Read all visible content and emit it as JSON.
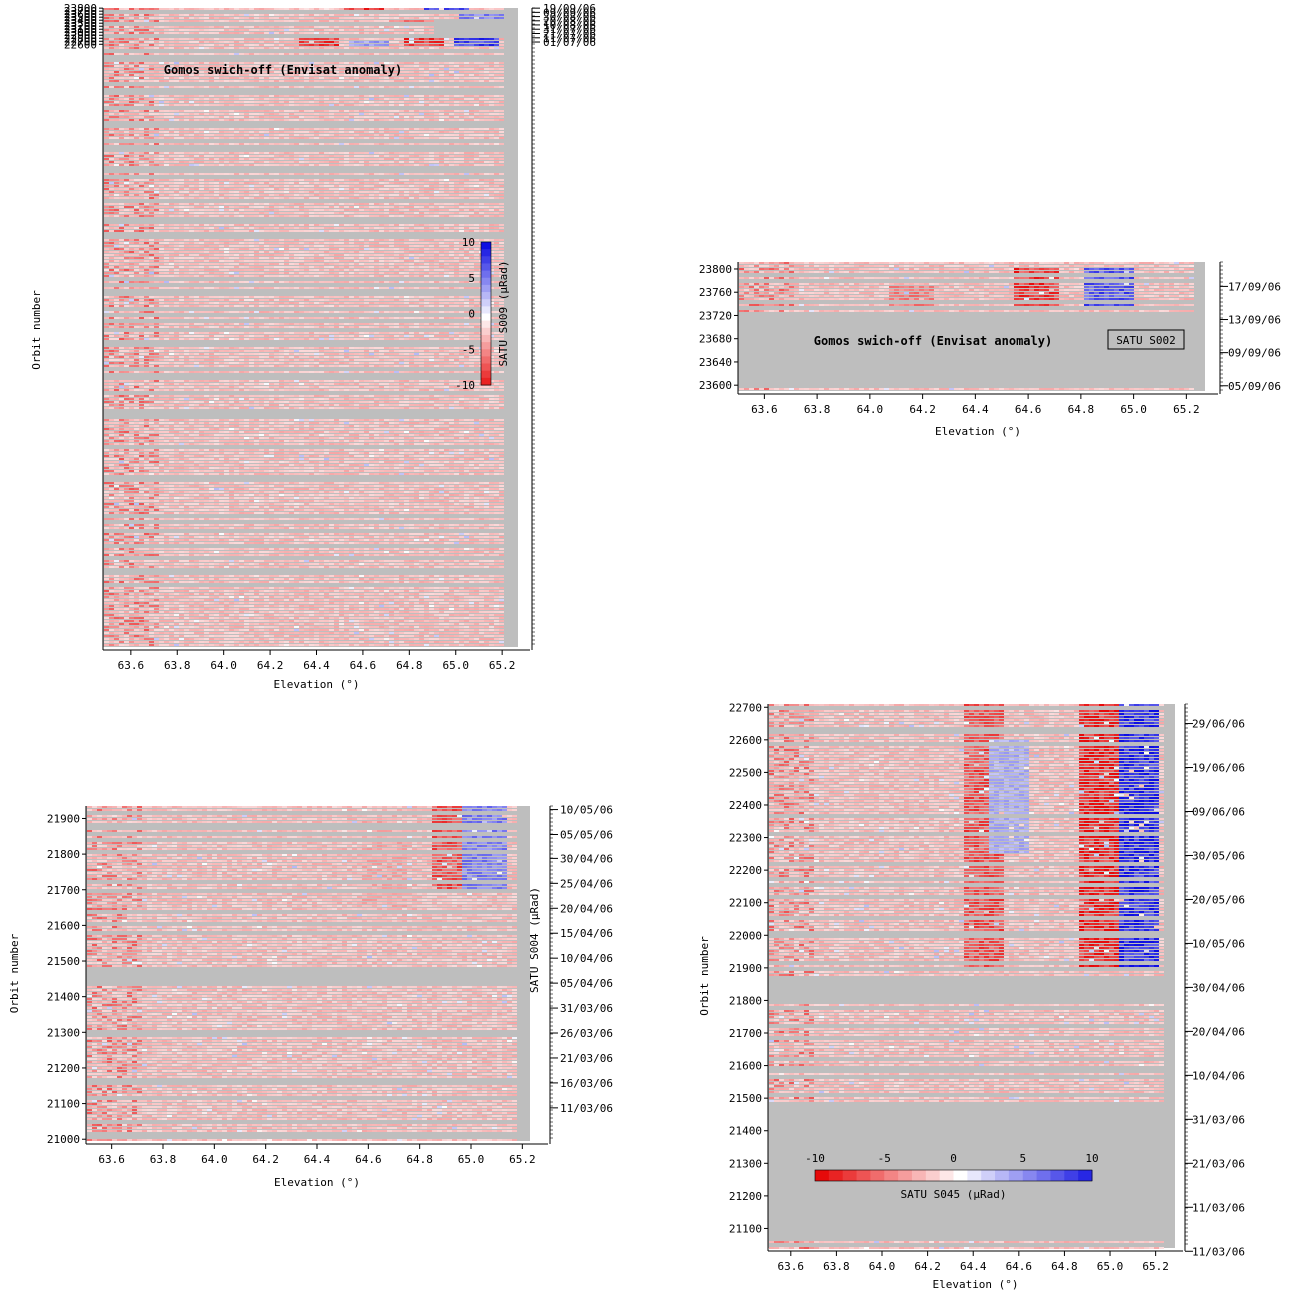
{
  "chart_data": [
    {
      "id": "S009",
      "type": "heatmap",
      "xlabel": "Elevation (°)",
      "ylabel": "",
      "xlim": [
        63.48,
        65.32
      ],
      "ylim": [
        2583,
        23805
      ],
      "x_ticks": [
        "63.6",
        "63.8",
        "64.0",
        "64.2",
        "64.4",
        "64.6",
        "64.8",
        "65.0",
        "65.2"
      ],
      "y_ticks": [
        "22600",
        "22700",
        "22800",
        "22900",
        "23000",
        "23100",
        "23200",
        "23300",
        "23400",
        "23500",
        "23600",
        "23700",
        "23800"
      ],
      "date_axis": [
        {
          "orbit": 23800,
          "label": "19/09/06"
        },
        {
          "orbit": 23660,
          "label": "09/09/06"
        },
        {
          "orbit": 23520,
          "label": "30/08/06"
        },
        {
          "orbit": 23380,
          "label": "20/08/06"
        },
        {
          "orbit": 23243,
          "label": "10/08/06"
        },
        {
          "orbit": 23100,
          "label": "31/07/06"
        },
        {
          "orbit": 22958,
          "label": "21/07/06"
        },
        {
          "orbit": 22815,
          "label": "11/07/06"
        },
        {
          "orbit": 22675,
          "label": "01/07/06"
        }
      ],
      "annotation": "Gomos swich-off (Envisat anomaly)",
      "colorbar": {
        "label": "SATU S009 (µRad)",
        "ticks": [
          "10",
          "5",
          "0",
          "-5",
          "-10"
        ],
        "range": [
          -10,
          10
        ],
        "orientation": "vertical"
      },
      "gaps": [
        [
          23646,
          23750
        ],
        [
          23540,
          23590
        ],
        [
          23040,
          23090
        ],
        [
          23190,
          23202
        ]
      ],
      "right_limit": [
        [
          22583,
          22975,
          65.2
        ],
        [
          22975,
          23410,
          64.9
        ],
        [
          23410,
          23646,
          65.2
        ],
        [
          23750,
          23805,
          65.2
        ]
      ],
      "features": [
        {
          "x": 64.4,
          "orbit_from": 22600,
          "orbit_to": 22820,
          "value": -9
        },
        {
          "x": 64.85,
          "orbit_from": 22600,
          "orbit_to": 22820,
          "value": -9
        },
        {
          "x": 65.08,
          "orbit_from": 22600,
          "orbit_to": 22820,
          "value": 9
        },
        {
          "x": 64.62,
          "orbit_from": 22600,
          "orbit_to": 22780,
          "value": 5
        },
        {
          "x": 64.8,
          "orbit_from": 23250,
          "orbit_to": 23420,
          "value": -6
        },
        {
          "x": 65.1,
          "orbit_from": 23470,
          "orbit_to": 23640,
          "value": 6
        },
        {
          "x": 64.6,
          "orbit_from": 23760,
          "orbit_to": 23805,
          "value": -9
        },
        {
          "x": 64.95,
          "orbit_from": 23760,
          "orbit_to": 23805,
          "value": 8
        }
      ],
      "colors": {
        "negative": "#e8000a",
        "positive": "#0010e0",
        "gap": "#bebebe"
      }
    },
    {
      "id": "S002",
      "type": "heatmap",
      "xlabel": "Elevation (°)",
      "ylabel": "",
      "xlim": [
        63.5,
        65.32
      ],
      "ylim": [
        23590,
        23812
      ],
      "x_ticks": [
        "63.6",
        "63.8",
        "64.0",
        "64.2",
        "64.4",
        "64.6",
        "64.8",
        "65.0",
        "65.2"
      ],
      "y_ticks": [
        "23600",
        "23640",
        "23680",
        "23720",
        "23760",
        "23800"
      ],
      "date_axis": [
        {
          "orbit": 23770,
          "label": "17/09/06"
        },
        {
          "orbit": 23713,
          "label": "13/09/06"
        },
        {
          "orbit": 23656,
          "label": "09/09/06"
        },
        {
          "orbit": 23599,
          "label": "05/09/06"
        }
      ],
      "annotation": "Gomos swich-off (Envisat anomaly)",
      "label_box": "SATU S002",
      "gaps": [
        [
          23603,
          23726
        ]
      ],
      "features": [
        {
          "x": 64.62,
          "orbit_from": 23730,
          "orbit_to": 23805,
          "value": -9
        },
        {
          "x": 64.9,
          "orbit_from": 23730,
          "orbit_to": 23805,
          "value": 8
        },
        {
          "x": 64.15,
          "orbit_from": 23735,
          "orbit_to": 23775,
          "value": -6
        }
      ]
    },
    {
      "id": "S004",
      "type": "heatmap",
      "xlabel": "Elevation (°)",
      "ylabel": "Orbit number",
      "xlim": [
        63.5,
        65.3
      ],
      "ylim": [
        20995,
        21935
      ],
      "x_ticks": [
        "63.6",
        "63.8",
        "64.0",
        "64.2",
        "64.4",
        "64.6",
        "64.8",
        "65.0",
        "65.2"
      ],
      "y_ticks": [
        "21000",
        "21100",
        "21200",
        "21300",
        "21400",
        "21500",
        "21600",
        "21700",
        "21800",
        "21900"
      ],
      "date_axis": [
        {
          "orbit": 21925,
          "label": "10/05/06"
        },
        {
          "orbit": 21855,
          "label": "05/05/06"
        },
        {
          "orbit": 21788,
          "label": "30/04/06"
        },
        {
          "orbit": 21718,
          "label": "25/04/06"
        },
        {
          "orbit": 21648,
          "label": "20/04/06"
        },
        {
          "orbit": 21578,
          "label": "15/04/06"
        },
        {
          "orbit": 21508,
          "label": "10/04/06"
        },
        {
          "orbit": 21438,
          "label": "05/04/06"
        },
        {
          "orbit": 21368,
          "label": "31/03/06"
        },
        {
          "orbit": 21298,
          "label": "26/03/06"
        },
        {
          "orbit": 21228,
          "label": "21/03/06"
        },
        {
          "orbit": 21158,
          "label": "16/03/06"
        },
        {
          "orbit": 21088,
          "label": "11/03/06"
        }
      ],
      "colorbar": {
        "label": "SATU S004 (µRad)"
      },
      "gaps": [
        [
          21430,
          21478
        ],
        [
          21298,
          21308
        ]
      ],
      "features": [
        {
          "x": 64.92,
          "orbit_from": 21700,
          "orbit_to": 21935,
          "value": -8
        },
        {
          "x": 65.05,
          "orbit_from": 21700,
          "orbit_to": 21935,
          "value": 6
        },
        {
          "x": 64.65,
          "orbit_from": 21650,
          "orbit_to": 21900,
          "value": -4
        }
      ]
    },
    {
      "id": "S045",
      "type": "heatmap",
      "xlabel": "Elevation (°)",
      "ylabel": "Orbit number",
      "xlim": [
        63.5,
        65.32
      ],
      "ylim": [
        21040,
        22710
      ],
      "x_ticks": [
        "63.6",
        "63.8",
        "64.0",
        "64.2",
        "64.4",
        "64.6",
        "64.8",
        "65.0",
        "65.2"
      ],
      "y_ticks": [
        "21100",
        "21200",
        "21300",
        "21400",
        "21500",
        "21600",
        "21700",
        "21800",
        "21900",
        "22000",
        "22100",
        "22200",
        "22300",
        "22400",
        "22500",
        "22600",
        "22700"
      ],
      "date_axis": [
        {
          "orbit": 22650,
          "label": "29/06/06"
        },
        {
          "orbit": 22515,
          "label": "19/06/06"
        },
        {
          "orbit": 22380,
          "label": "09/06/06"
        },
        {
          "orbit": 22245,
          "label": "30/05/06"
        },
        {
          "orbit": 22110,
          "label": "20/05/06"
        },
        {
          "orbit": 21975,
          "label": "10/05/06"
        },
        {
          "orbit": 21840,
          "label": "30/04/06"
        },
        {
          "orbit": 21705,
          "label": "20/04/06"
        },
        {
          "orbit": 21570,
          "label": "10/04/06"
        },
        {
          "orbit": 21435,
          "label": "31/03/06"
        },
        {
          "orbit": 21300,
          "label": "21/03/06"
        },
        {
          "orbit": 21165,
          "label": "11/03/06"
        },
        {
          "orbit": 21030,
          "label": "11/03/06"
        }
      ],
      "colorbar": {
        "label": "SATU S045 (µRad)",
        "ticks": [
          "-10",
          "-5",
          "0",
          "5",
          "10"
        ],
        "range": [
          -10,
          10
        ],
        "orientation": "horizontal"
      },
      "gaps": [
        [
          21795,
          21880
        ],
        [
          21065,
          21488
        ]
      ],
      "features": [
        {
          "x": 64.43,
          "orbit_from": 21895,
          "orbit_to": 22710,
          "value": -8
        },
        {
          "x": 64.95,
          "orbit_from": 21895,
          "orbit_to": 22710,
          "value": -10
        },
        {
          "x": 65.12,
          "orbit_from": 21895,
          "orbit_to": 22710,
          "value": 10
        },
        {
          "x": 64.55,
          "orbit_from": 22250,
          "orbit_to": 22600,
          "value": 4
        }
      ]
    }
  ]
}
